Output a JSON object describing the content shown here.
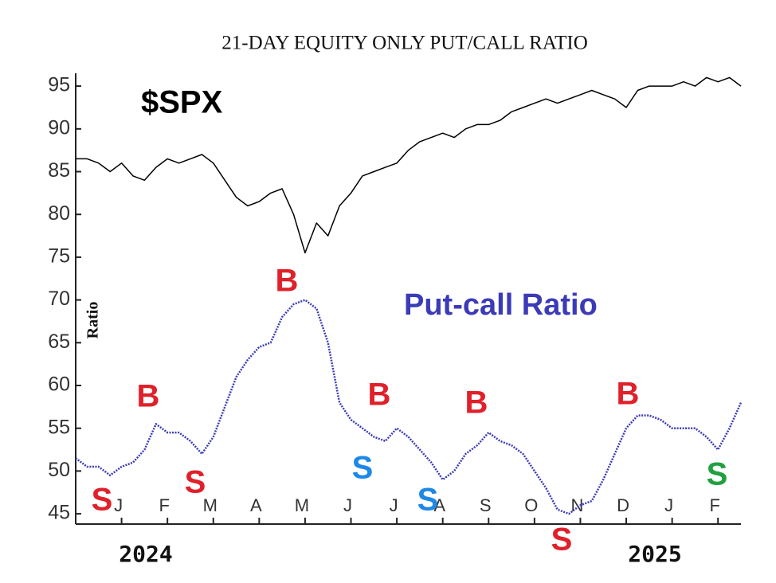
{
  "chart_data": {
    "type": "line",
    "title": "21-DAY EQUITY ONLY PUT/CALL RATIO",
    "y_label": "Ratio",
    "categories": [
      null,
      null,
      null,
      null,
      "J",
      null,
      null,
      null,
      "F",
      null,
      null,
      null,
      "M",
      null,
      null,
      null,
      "A",
      null,
      null,
      null,
      "M",
      null,
      null,
      null,
      "J",
      null,
      null,
      null,
      "J",
      null,
      null,
      null,
      "A",
      null,
      null,
      null,
      "S",
      null,
      null,
      null,
      "O",
      null,
      null,
      null,
      "N",
      null,
      null,
      null,
      "D",
      null,
      null,
      null,
      "J",
      null,
      null,
      null,
      "F",
      null,
      null
    ],
    "x_groups": [
      "2024",
      "2025"
    ],
    "series": [
      {
        "name": "$SPX",
        "color": "#000000",
        "values": [
          86.5,
          86.5,
          86,
          85,
          86,
          84.5,
          84,
          85.5,
          86.5,
          86,
          86.5,
          87,
          86,
          84,
          82,
          81,
          81.5,
          82.5,
          83,
          80,
          75.5,
          79,
          77.5,
          81,
          82.5,
          84.5,
          85,
          85.5,
          86,
          87.5,
          88.5,
          89,
          89.5,
          89,
          90,
          90.5,
          90.5,
          91,
          92,
          92.5,
          93,
          93.5,
          93,
          93.5,
          94,
          94.5,
          94,
          93.5,
          92.5,
          94.5,
          95,
          95,
          95,
          95.5,
          95,
          96,
          95.5,
          96,
          95
        ]
      },
      {
        "name": "Put-call Ratio",
        "color": "#3b3bb8",
        "values": [
          51.5,
          50.5,
          50.5,
          49.5,
          50.5,
          51,
          52.5,
          55.5,
          54.5,
          54.5,
          53.5,
          52,
          54,
          57.5,
          61,
          63,
          64.5,
          65,
          68,
          69.5,
          70,
          69,
          65,
          58,
          56,
          55,
          54,
          53.5,
          55,
          54,
          52.5,
          51,
          49,
          50,
          52,
          53,
          54.5,
          53.5,
          53,
          52,
          50,
          48,
          45.5,
          45,
          46,
          46.5,
          49,
          52,
          55,
          56.5,
          56.5,
          56,
          55,
          55,
          55,
          54,
          52.5,
          55,
          58
        ]
      }
    ],
    "annotations": [
      {
        "text": "S",
        "color": "#e0202a"
      },
      {
        "text": "B",
        "color": "#e0202a"
      },
      {
        "text": "S",
        "color": "#e0202a"
      },
      {
        "text": "B",
        "color": "#e0202a"
      },
      {
        "text": "B",
        "color": "#e0202a"
      },
      {
        "text": "S",
        "color": "#1e88e5"
      },
      {
        "text": "S",
        "color": "#1e88e5"
      },
      {
        "text": "B",
        "color": "#e0202a"
      },
      {
        "text": "S",
        "color": "#e0202a"
      },
      {
        "text": "B",
        "color": "#e0202a"
      },
      {
        "text": "S",
        "color": "#22a040"
      }
    ],
    "ylim": [
      43.8,
      96.5
    ],
    "yticks": [
      45,
      50,
      55,
      60,
      65,
      70,
      75,
      80,
      85,
      90,
      95
    ]
  }
}
